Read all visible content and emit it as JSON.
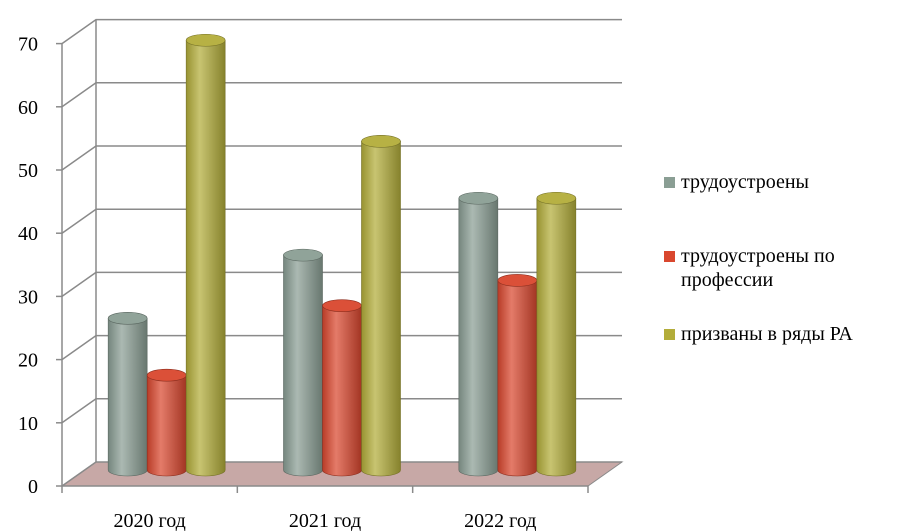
{
  "chart_data": {
    "type": "bar",
    "categories": [
      "2020 год",
      "2021 год",
      "2022 год"
    ],
    "series": [
      {
        "name": "трудоустроены",
        "values": [
          24,
          34,
          43
        ],
        "color": "#8a9e94"
      },
      {
        "name": "трудоустроены по профессии",
        "values": [
          15,
          26,
          30
        ],
        "color": "#d9472e"
      },
      {
        "name": "призваны в ряды РА",
        "values": [
          68,
          52,
          43
        ],
        "color": "#b3ad3a"
      }
    ],
    "ylim": [
      0,
      70
    ],
    "yticks": [
      0,
      10,
      20,
      30,
      40,
      50,
      60,
      70
    ],
    "grid": true,
    "legend_position": "right",
    "floor_color": "#c7a8a6"
  }
}
